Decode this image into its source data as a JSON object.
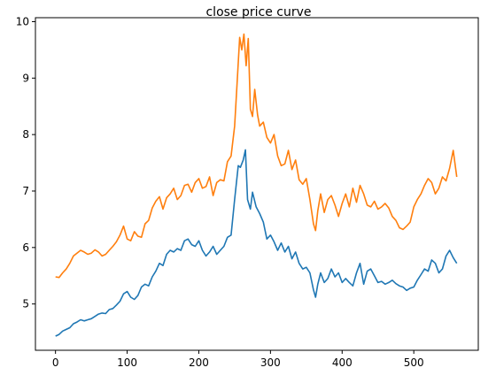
{
  "chart_data": {
    "type": "line",
    "title": "close price curve",
    "xlabel": "",
    "ylabel": "",
    "xlim": [
      -28,
      590
    ],
    "ylim": [
      4.18,
      10.07
    ],
    "x_ticks": [
      0,
      100,
      200,
      300,
      400,
      500
    ],
    "y_ticks": [
      5,
      6,
      7,
      8,
      9,
      10
    ],
    "grid": false,
    "legend": "none",
    "series": [
      {
        "color": "#1f77b4",
        "x": [
          0,
          5,
          10,
          15,
          20,
          25,
          30,
          35,
          40,
          45,
          50,
          55,
          60,
          65,
          70,
          75,
          80,
          85,
          90,
          95,
          100,
          105,
          110,
          115,
          120,
          125,
          130,
          135,
          140,
          145,
          150,
          155,
          160,
          165,
          170,
          175,
          180,
          185,
          190,
          195,
          200,
          205,
          210,
          215,
          220,
          225,
          230,
          235,
          240,
          245,
          250,
          255,
          258,
          262,
          265,
          268,
          272,
          275,
          280,
          285,
          290,
          295,
          300,
          305,
          310,
          315,
          320,
          325,
          330,
          335,
          340,
          345,
          350,
          355,
          360,
          363,
          366,
          370,
          375,
          380,
          385,
          390,
          395,
          400,
          405,
          410,
          415,
          420,
          425,
          430,
          435,
          440,
          445,
          450,
          455,
          460,
          465,
          470,
          475,
          480,
          485,
          490,
          495,
          500,
          505,
          510,
          515,
          520,
          525,
          530,
          535,
          540,
          545,
          550,
          555,
          560
        ],
        "y": [
          4.43,
          4.46,
          4.52,
          4.55,
          4.58,
          4.65,
          4.68,
          4.72,
          4.7,
          4.72,
          4.74,
          4.78,
          4.82,
          4.84,
          4.83,
          4.9,
          4.92,
          4.98,
          5.05,
          5.18,
          5.22,
          5.12,
          5.08,
          5.15,
          5.3,
          5.35,
          5.32,
          5.48,
          5.58,
          5.72,
          5.68,
          5.88,
          5.95,
          5.92,
          5.98,
          5.95,
          6.12,
          6.15,
          6.05,
          6.02,
          6.12,
          5.95,
          5.85,
          5.92,
          6.02,
          5.88,
          5.95,
          6.02,
          6.18,
          6.22,
          6.85,
          7.45,
          7.42,
          7.55,
          7.73,
          6.85,
          6.68,
          6.98,
          6.72,
          6.6,
          6.45,
          6.15,
          6.22,
          6.1,
          5.95,
          6.08,
          5.92,
          6.02,
          5.8,
          5.92,
          5.72,
          5.62,
          5.65,
          5.55,
          5.25,
          5.12,
          5.35,
          5.55,
          5.38,
          5.45,
          5.62,
          5.48,
          5.55,
          5.38,
          5.45,
          5.38,
          5.32,
          5.55,
          5.72,
          5.35,
          5.58,
          5.62,
          5.5,
          5.38,
          5.4,
          5.35,
          5.38,
          5.42,
          5.36,
          5.32,
          5.3,
          5.24,
          5.28,
          5.3,
          5.42,
          5.52,
          5.62,
          5.58,
          5.78,
          5.72,
          5.55,
          5.62,
          5.85,
          5.95,
          5.82,
          5.72
        ]
      },
      {
        "color": "#ff7f0e",
        "x": [
          0,
          5,
          10,
          15,
          20,
          25,
          30,
          35,
          40,
          45,
          50,
          55,
          60,
          65,
          70,
          75,
          80,
          85,
          90,
          95,
          100,
          105,
          110,
          115,
          120,
          125,
          130,
          135,
          140,
          145,
          150,
          155,
          160,
          165,
          170,
          175,
          180,
          185,
          190,
          195,
          200,
          205,
          210,
          215,
          220,
          225,
          230,
          235,
          240,
          245,
          250,
          254,
          257,
          260,
          263,
          266,
          269,
          272,
          275,
          278,
          282,
          285,
          290,
          295,
          300,
          305,
          310,
          315,
          320,
          325,
          330,
          335,
          340,
          345,
          350,
          355,
          360,
          363,
          366,
          370,
          375,
          380,
          385,
          390,
          395,
          400,
          405,
          410,
          415,
          420,
          425,
          430,
          435,
          440,
          445,
          450,
          455,
          460,
          465,
          470,
          475,
          480,
          485,
          490,
          495,
          500,
          505,
          510,
          515,
          520,
          525,
          530,
          535,
          540,
          545,
          550,
          555,
          560
        ],
        "y": [
          5.48,
          5.47,
          5.55,
          5.62,
          5.72,
          5.85,
          5.9,
          5.95,
          5.92,
          5.88,
          5.9,
          5.96,
          5.92,
          5.85,
          5.88,
          5.95,
          6.02,
          6.1,
          6.22,
          6.38,
          6.15,
          6.12,
          6.28,
          6.2,
          6.18,
          6.42,
          6.48,
          6.7,
          6.82,
          6.9,
          6.68,
          6.88,
          6.95,
          7.05,
          6.85,
          6.92,
          7.1,
          7.12,
          6.98,
          7.15,
          7.22,
          7.05,
          7.08,
          7.25,
          6.92,
          7.15,
          7.2,
          7.18,
          7.52,
          7.62,
          8.15,
          9.05,
          9.72,
          9.5,
          9.78,
          9.22,
          9.7,
          8.45,
          8.32,
          8.8,
          8.35,
          8.15,
          8.22,
          7.95,
          7.85,
          8.0,
          7.62,
          7.45,
          7.48,
          7.72,
          7.38,
          7.55,
          7.2,
          7.12,
          7.22,
          6.85,
          6.42,
          6.3,
          6.65,
          6.95,
          6.62,
          6.85,
          6.92,
          6.75,
          6.55,
          6.78,
          6.95,
          6.72,
          7.05,
          6.8,
          7.1,
          6.95,
          6.75,
          6.72,
          6.82,
          6.68,
          6.72,
          6.78,
          6.7,
          6.55,
          6.48,
          6.35,
          6.32,
          6.38,
          6.45,
          6.72,
          6.85,
          6.95,
          7.1,
          7.22,
          7.15,
          6.95,
          7.05,
          7.25,
          7.18,
          7.4,
          7.72,
          7.25
        ]
      }
    ]
  }
}
